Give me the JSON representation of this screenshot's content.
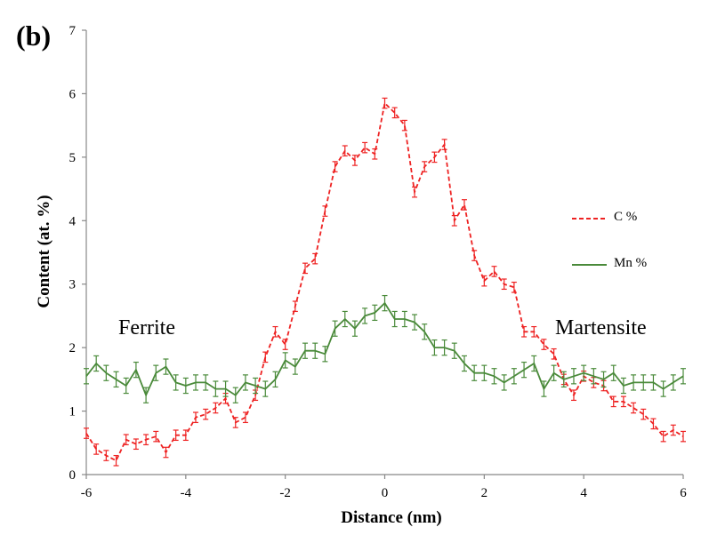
{
  "panel_label": "(b)",
  "region_labels": {
    "left": "Ferrite",
    "right": "Martensite"
  },
  "legend": {
    "c": "C %",
    "mn": "Mn %",
    "placement": "right"
  },
  "colors": {
    "c": "#ee2222",
    "mn": "#4a8a3a",
    "axis": "#888888"
  },
  "chart_data": {
    "type": "line",
    "xlabel": "Distance (nm)",
    "ylabel": "Content (at. %)",
    "xlim": [
      -6,
      6
    ],
    "ylim": [
      0,
      7
    ],
    "x_ticks": [
      -6,
      -4,
      -2,
      0,
      2,
      4,
      6
    ],
    "y_ticks": [
      0,
      1,
      2,
      3,
      4,
      5,
      6,
      7
    ],
    "grid": false,
    "series": [
      {
        "name": "C %",
        "style": "dashed",
        "error_bar": 0.08,
        "x": [
          -6.0,
          -5.8,
          -5.6,
          -5.4,
          -5.2,
          -5.0,
          -4.8,
          -4.6,
          -4.4,
          -4.2,
          -4.0,
          -3.8,
          -3.6,
          -3.4,
          -3.2,
          -3.0,
          -2.8,
          -2.6,
          -2.4,
          -2.2,
          -2.0,
          -1.8,
          -1.6,
          -1.4,
          -1.2,
          -1.0,
          -0.8,
          -0.6,
          -0.4,
          -0.2,
          0.0,
          0.2,
          0.4,
          0.6,
          0.8,
          1.0,
          1.2,
          1.4,
          1.6,
          1.8,
          2.0,
          2.2,
          2.4,
          2.6,
          2.8,
          3.0,
          3.2,
          3.4,
          3.6,
          3.8,
          4.0,
          4.2,
          4.4,
          4.6,
          4.8,
          5.0,
          5.2,
          5.4,
          5.6,
          5.8,
          6.0
        ],
        "values": [
          0.65,
          0.4,
          0.3,
          0.22,
          0.55,
          0.48,
          0.55,
          0.6,
          0.35,
          0.62,
          0.62,
          0.9,
          0.95,
          1.05,
          1.2,
          0.82,
          0.9,
          1.25,
          1.85,
          2.25,
          2.05,
          2.65,
          3.25,
          3.4,
          4.15,
          4.85,
          5.1,
          4.95,
          5.15,
          5.05,
          5.85,
          5.7,
          5.5,
          4.45,
          4.85,
          5.0,
          5.2,
          4.0,
          4.25,
          3.45,
          3.05,
          3.2,
          3.0,
          2.95,
          2.25,
          2.25,
          2.05,
          1.9,
          1.5,
          1.25,
          1.55,
          1.45,
          1.4,
          1.15,
          1.15,
          1.05,
          0.95,
          0.8,
          0.6,
          0.7,
          0.6
        ]
      },
      {
        "name": "Mn %",
        "style": "solid",
        "error_bar": 0.12,
        "x": [
          -6.0,
          -5.8,
          -5.6,
          -5.4,
          -5.2,
          -5.0,
          -4.8,
          -4.6,
          -4.4,
          -4.2,
          -4.0,
          -3.8,
          -3.6,
          -3.4,
          -3.2,
          -3.0,
          -2.8,
          -2.6,
          -2.4,
          -2.2,
          -2.0,
          -1.8,
          -1.6,
          -1.4,
          -1.2,
          -1.0,
          -0.8,
          -0.6,
          -0.4,
          -0.2,
          0.0,
          0.2,
          0.4,
          0.6,
          0.8,
          1.0,
          1.2,
          1.4,
          1.6,
          1.8,
          2.0,
          2.2,
          2.4,
          2.6,
          2.8,
          3.0,
          3.2,
          3.4,
          3.6,
          3.8,
          4.0,
          4.2,
          4.4,
          4.6,
          4.8,
          5.0,
          5.2,
          5.4,
          5.6,
          5.8,
          6.0
        ],
        "values": [
          1.55,
          1.75,
          1.6,
          1.5,
          1.4,
          1.65,
          1.25,
          1.6,
          1.7,
          1.45,
          1.4,
          1.45,
          1.45,
          1.35,
          1.35,
          1.25,
          1.45,
          1.4,
          1.35,
          1.5,
          1.8,
          1.7,
          1.95,
          1.95,
          1.9,
          2.3,
          2.45,
          2.3,
          2.5,
          2.55,
          2.7,
          2.45,
          2.45,
          2.4,
          2.25,
          2.0,
          2.0,
          1.95,
          1.75,
          1.6,
          1.6,
          1.55,
          1.45,
          1.55,
          1.65,
          1.75,
          1.35,
          1.6,
          1.5,
          1.55,
          1.6,
          1.55,
          1.5,
          1.6,
          1.4,
          1.45,
          1.45,
          1.45,
          1.35,
          1.45,
          1.55
        ]
      }
    ]
  }
}
